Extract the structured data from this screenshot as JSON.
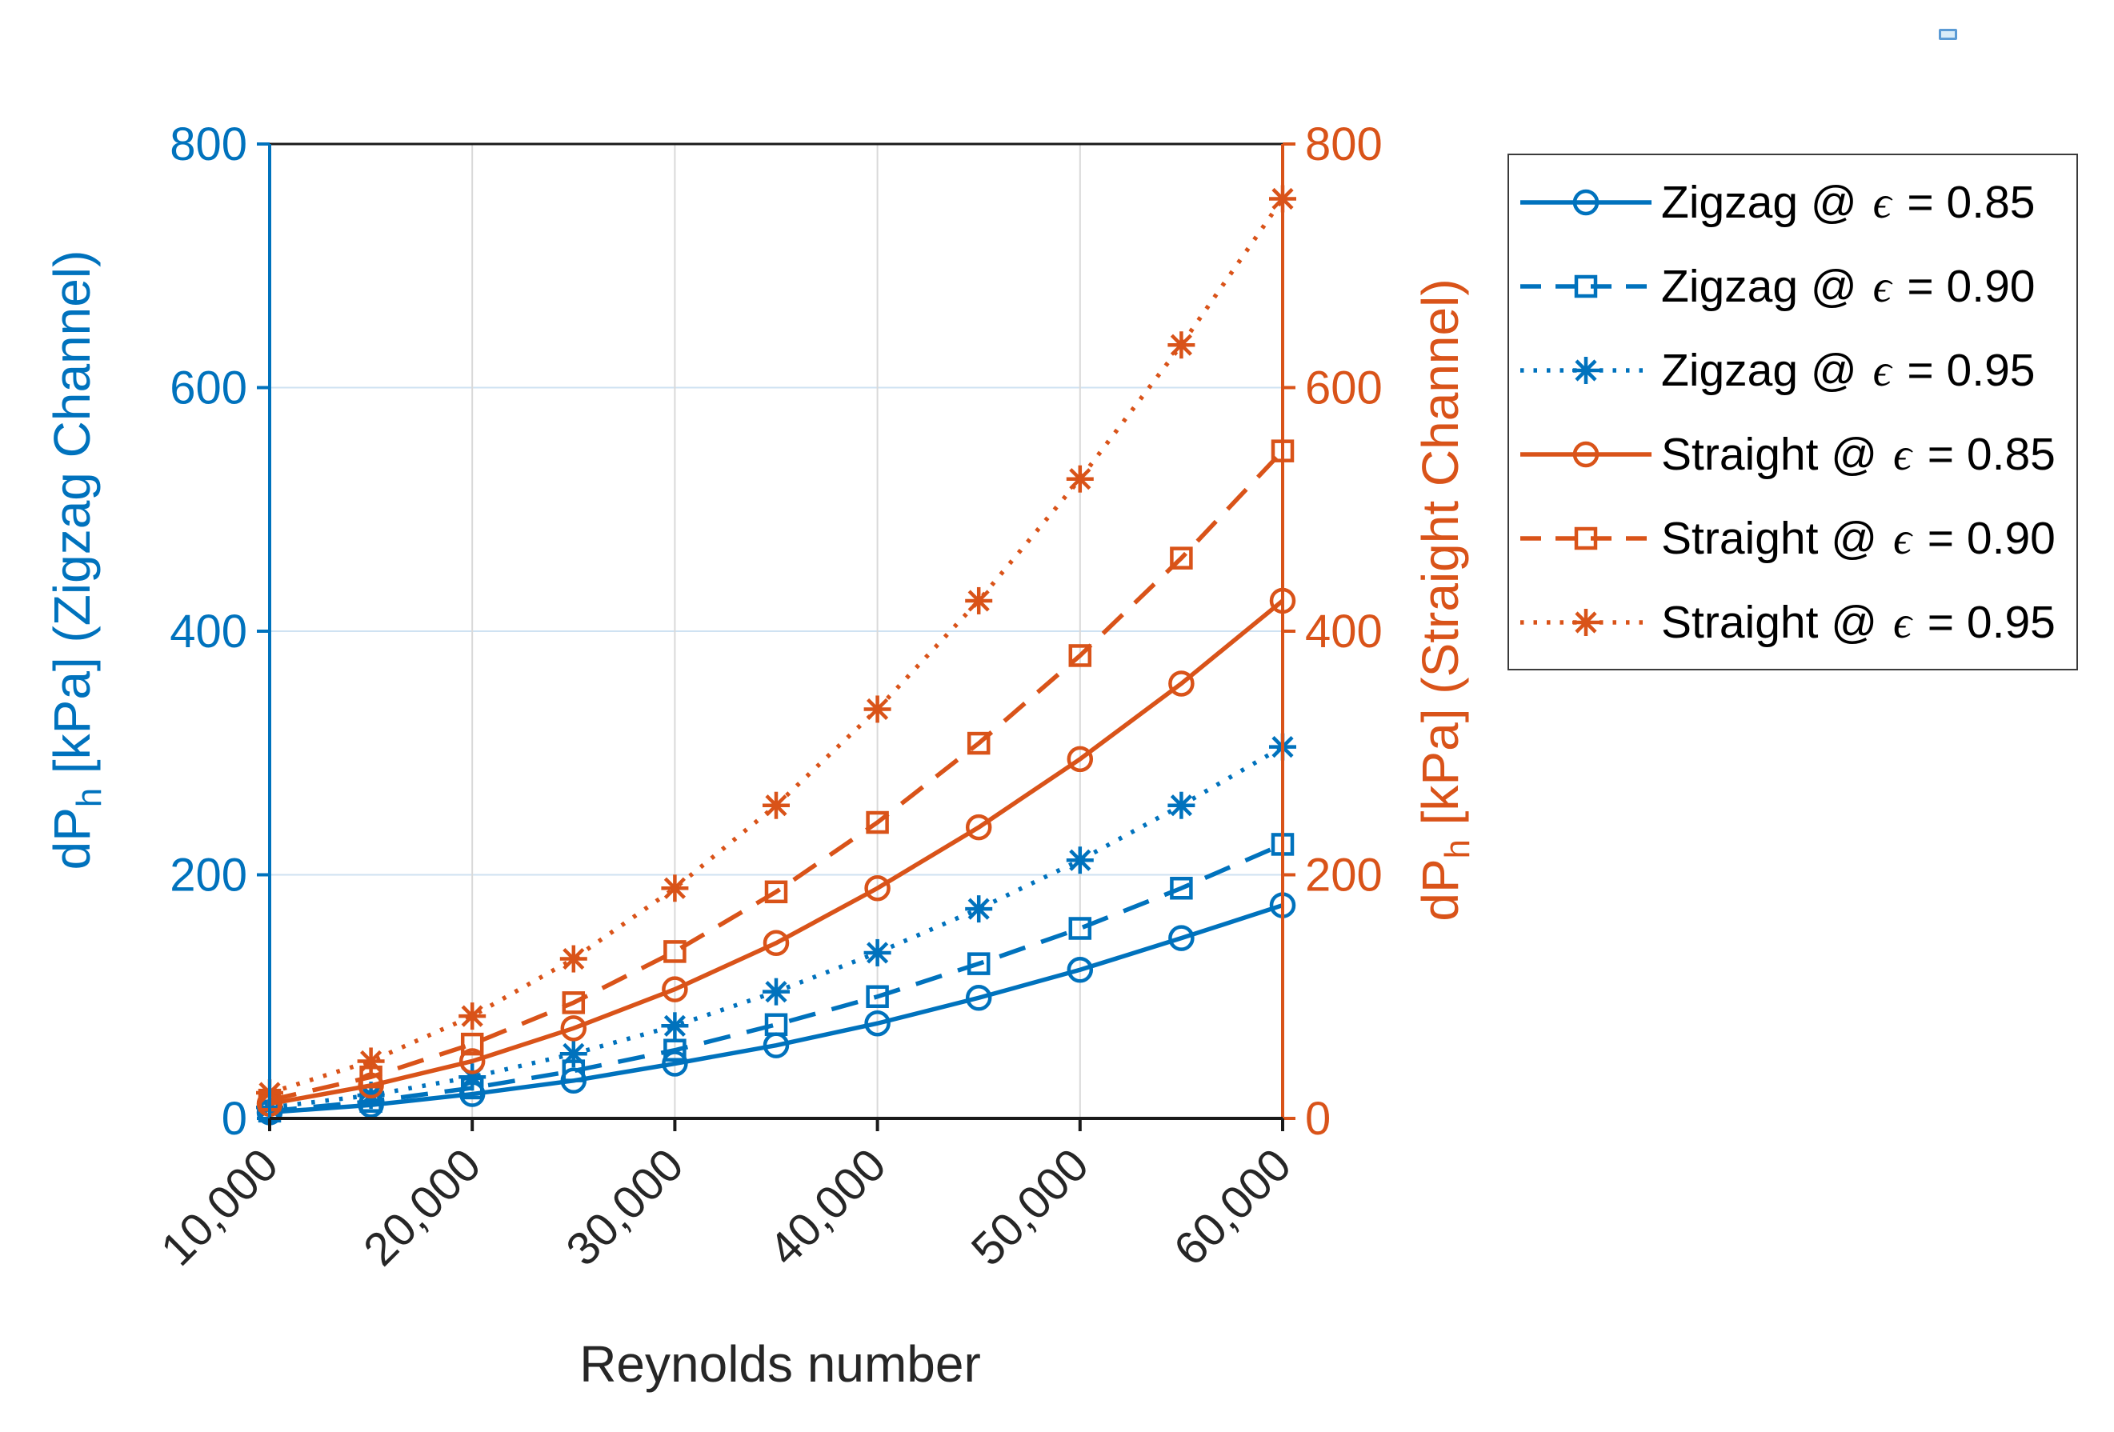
{
  "figure": {
    "xlabel": "Reynolds number",
    "ylabel_left": {
      "pre": "dP",
      "sub": "h",
      "post": " [kPa] (Zigzag Channel)"
    },
    "ylabel_right": {
      "pre": "dP",
      "sub": "h",
      "post": " [kPa] (Straight Channel)"
    }
  },
  "chart_data": {
    "type": "line",
    "title": "",
    "xlabel": "Reynolds number",
    "ylabel_left": "dP_h [kPa] (Zigzag Channel)",
    "ylabel_right": "dP_h [kPa] (Straight Channel)",
    "xlim": [
      10000,
      60000
    ],
    "ylim_left": [
      0,
      800
    ],
    "ylim_right": [
      0,
      800
    ],
    "grid": true,
    "legend_position": "outside right top",
    "x": [
      10000,
      15000,
      20000,
      25000,
      30000,
      35000,
      40000,
      45000,
      50000,
      55000,
      60000
    ],
    "x_ticks": [
      10000,
      20000,
      30000,
      40000,
      50000,
      60000
    ],
    "x_tick_labels": [
      "10,000",
      "20,000",
      "30,000",
      "40,000",
      "50,000",
      "60,000"
    ],
    "y_ticks": [
      0,
      200,
      400,
      600,
      800
    ],
    "y_tick_labels": [
      "0",
      "200",
      "400",
      "600",
      "800"
    ],
    "series": [
      {
        "name": "Zigzag @ ϵ = 0.85",
        "axis": "left",
        "color": "#0072BD",
        "line": "solid",
        "marker": "circle",
        "values": [
          5,
          11,
          20,
          31,
          45,
          60,
          78,
          99,
          122,
          148,
          175
        ]
      },
      {
        "name": "Zigzag @ ϵ = 0.90",
        "axis": "left",
        "color": "#0072BD",
        "line": "dashed",
        "marker": "square",
        "values": [
          6,
          14,
          25,
          39,
          56,
          77,
          100,
          127,
          156,
          189,
          225
        ]
      },
      {
        "name": "Zigzag @ ϵ = 0.95",
        "axis": "left",
        "color": "#0072BD",
        "line": "dotted",
        "marker": "asterisk",
        "values": [
          9,
          19,
          34,
          53,
          76,
          104,
          136,
          172,
          212,
          257,
          305
        ]
      },
      {
        "name": "Straight @ ϵ = 0.85",
        "axis": "right",
        "color": "#D95319",
        "line": "solid",
        "marker": "circle",
        "values": [
          12,
          27,
          47,
          74,
          106,
          144,
          189,
          239,
          295,
          357,
          425
        ]
      },
      {
        "name": "Straight @ ϵ = 0.90",
        "axis": "right",
        "color": "#D95319",
        "line": "dashed",
        "marker": "square",
        "values": [
          15,
          34,
          61,
          95,
          137,
          186,
          243,
          308,
          380,
          460,
          548
        ]
      },
      {
        "name": "Straight @ ϵ = 0.95",
        "axis": "right",
        "color": "#D95319",
        "line": "dotted",
        "marker": "asterisk",
        "values": [
          21,
          47,
          84,
          131,
          189,
          257,
          336,
          425,
          525,
          635,
          755
        ]
      }
    ],
    "colors": {
      "left_axis": "#0072BD",
      "right_axis": "#D95319",
      "x_axis": "#1a1a1a",
      "tick_label_x": "#262626",
      "grid_horizontal": "#cfe2f2",
      "grid_vertical": "#d9d9d9",
      "background": "#ffffff",
      "legend_border": "#3b3b3b"
    }
  },
  "ui": {
    "corner_icon": {
      "fill": "#d9ecf8",
      "border": "#5b9bd5"
    }
  }
}
